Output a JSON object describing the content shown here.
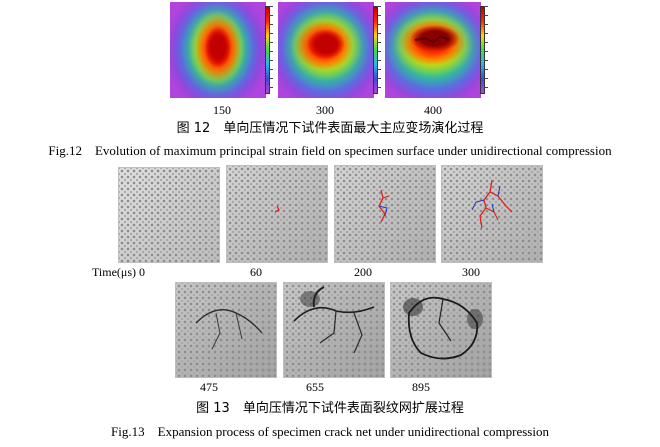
{
  "figure12": {
    "panels": [
      {
        "label": "150",
        "level": "small"
      },
      {
        "label": "300",
        "level": "medium"
      },
      {
        "label": "400",
        "level": "large"
      }
    ],
    "caption_cn": "图 12　单向压情况下试件表面最大主应变场演化过程",
    "caption_en": "Fig.12　Evolution of maximum principal strain field on specimen surface under unidirectional compression",
    "colors": {
      "peak": "#c20000",
      "high": "#ffd400",
      "mid": "#3cdc4c",
      "low": "#3b4fd8",
      "background": "#b044dd"
    }
  },
  "figure13": {
    "row1": [
      {
        "label": "Time(μs) 0"
      },
      {
        "label": "60"
      },
      {
        "label": "200"
      },
      {
        "label": "300"
      }
    ],
    "row2": [
      {
        "label": "475"
      },
      {
        "label": "655"
      },
      {
        "label": "895"
      }
    ],
    "caption_cn": "图 13　单向压情况下试件表面裂纹网扩展过程",
    "caption_en": "Fig.13　Expansion process of specimen crack net under unidirectional compression",
    "colors": {
      "crack_red": "#e0201a",
      "crack_blue": "#2233cc"
    }
  }
}
